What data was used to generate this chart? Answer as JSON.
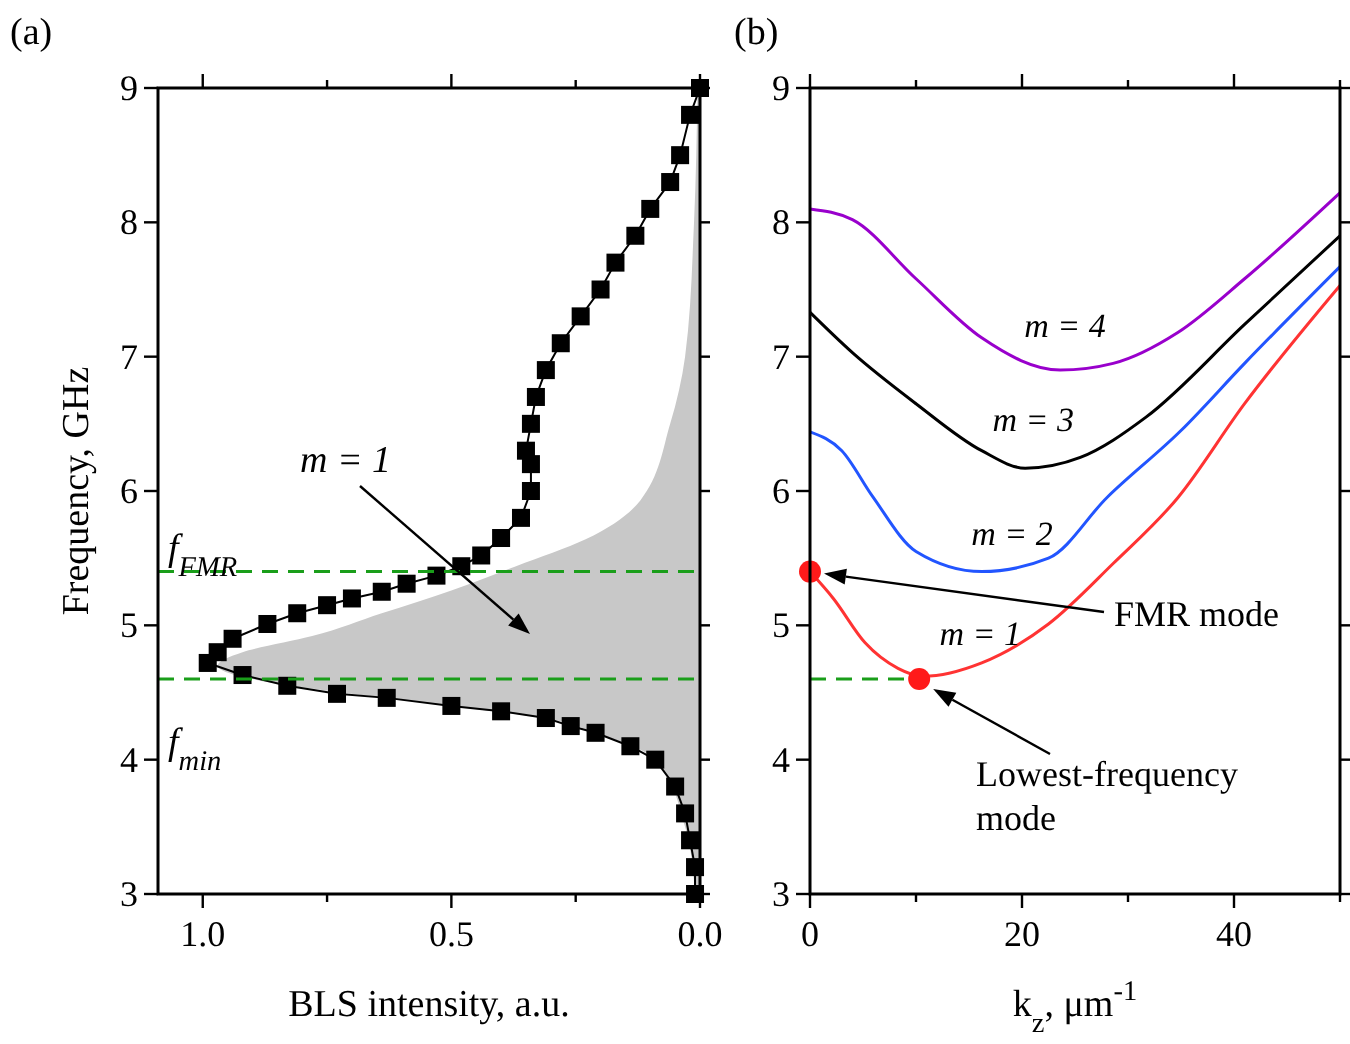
{
  "chart_data": [
    {
      "type": "line",
      "title": "(a)",
      "xlabel": "BLS intensity, a.u.",
      "ylabel": "Frequency, GHz",
      "orientation": "horizontal",
      "legend": false,
      "xlim": [
        1.09,
        0
      ],
      "xticks": [
        {
          "value": 1,
          "label": "1.0"
        },
        {
          "value": 0.75,
          "label": null
        },
        {
          "value": 0.5,
          "label": "0.5"
        },
        {
          "value": 0.25,
          "label": null
        },
        {
          "value": 0,
          "label": "0.0"
        }
      ],
      "ylim": [
        3,
        9
      ],
      "yticks": [
        3,
        4,
        5,
        6,
        7,
        8,
        9
      ],
      "series": [
        {
          "type": "area",
          "color": "#c8c8c8",
          "x": [
            3.0,
            3.5,
            4.0,
            4.2,
            4.3,
            4.4,
            4.5,
            4.6,
            4.7,
            4.8,
            4.92,
            5.09,
            5.26,
            5.44,
            5.64,
            5.93,
            6.5,
            7.0,
            8.0,
            9.0
          ],
          "values": [
            0.01,
            0.03,
            0.09,
            0.21,
            0.3,
            0.5,
            0.72,
            0.9,
            0.97,
            0.92,
            0.78,
            0.64,
            0.5,
            0.37,
            0.23,
            0.12,
            0.06,
            0.03,
            0.012,
            0.005
          ]
        },
        {
          "marker": "square",
          "color": "#000000",
          "x": [
            9.0,
            8.8,
            8.5,
            8.3,
            8.1,
            7.9,
            7.7,
            7.5,
            7.3,
            7.1,
            6.9,
            6.7,
            6.5,
            6.3,
            6.2,
            6.0,
            5.8,
            5.65,
            5.52,
            5.44,
            5.37,
            5.31,
            5.25,
            5.2,
            5.15,
            5.09,
            5.01,
            4.9,
            4.8,
            4.72,
            4.63,
            4.55,
            4.49,
            4.46,
            4.4,
            4.36,
            4.31,
            4.25,
            4.2,
            4.1,
            4.0,
            3.8,
            3.6,
            3.4,
            3.2,
            3.0
          ],
          "values": [
            0.0,
            0.02,
            0.04,
            0.06,
            0.1,
            0.13,
            0.17,
            0.2,
            0.24,
            0.28,
            0.31,
            0.33,
            0.34,
            0.35,
            0.34,
            0.34,
            0.36,
            0.4,
            0.44,
            0.48,
            0.53,
            0.59,
            0.64,
            0.7,
            0.75,
            0.81,
            0.87,
            0.94,
            0.97,
            0.99,
            0.92,
            0.83,
            0.73,
            0.63,
            0.5,
            0.4,
            0.31,
            0.26,
            0.21,
            0.14,
            0.09,
            0.05,
            0.03,
            0.02,
            0.01,
            0.01
          ]
        }
      ],
      "ref_lines": [
        {
          "axis": "y",
          "value": 5.4,
          "color": "#1a9e1a",
          "line_style": "dashed"
        },
        {
          "axis": "y",
          "value": 4.6,
          "color": "#1a9e1a",
          "line_style": "dashed"
        }
      ],
      "annotations": [
        "f$_{FMR}$",
        "f$_{min}$",
        "m = 1"
      ]
    },
    {
      "type": "line",
      "title": "(b)",
      "xlabel": "k$_{z}$, μm$^{-1}$",
      "legend": false,
      "xlim": [
        0,
        50
      ],
      "xticks": [
        0,
        {
          "value": 10,
          "label": null
        },
        20,
        {
          "value": 30,
          "label": null
        },
        40,
        {
          "value": 50,
          "label": null
        }
      ],
      "ylim": [
        3,
        9
      ],
      "yticks": [
        3,
        4,
        5,
        6,
        7,
        8,
        9
      ],
      "series": [
        {
          "name": "m = 1",
          "color": "#ff3333",
          "x": [
            0,
            2.2,
            5.2,
            8.3,
            10.7,
            16.2,
            22.5,
            28.6,
            34.7,
            41,
            50
          ],
          "values": [
            5.4,
            5.2,
            4.87,
            4.68,
            4.62,
            4.72,
            5.01,
            5.46,
            5.95,
            6.65,
            7.53
          ]
        },
        {
          "name": "m = 2",
          "color": "#2255ff",
          "x": [
            0,
            3,
            5.9,
            10,
            16.2,
            22.5,
            28,
            35,
            41,
            50
          ],
          "values": [
            6.44,
            6.3,
            5.96,
            5.55,
            5.4,
            5.5,
            5.95,
            6.45,
            6.95,
            7.67
          ]
        },
        {
          "name": "m = 3",
          "color": "#000000",
          "x": [
            0,
            4,
            10,
            16.2,
            20.3,
            25.5,
            31.7,
            41,
            50
          ],
          "values": [
            7.33,
            7.03,
            6.65,
            6.3,
            6.17,
            6.25,
            6.55,
            7.24,
            7.9
          ]
        },
        {
          "name": "m = 4",
          "color": "#9900cc",
          "x": [
            0,
            4,
            10,
            16.2,
            23.6,
            28.6,
            34.7,
            41,
            50
          ],
          "values": [
            8.1,
            8.02,
            7.58,
            7.14,
            6.9,
            6.95,
            7.18,
            7.58,
            8.22
          ]
        },
        {
          "type": "line",
          "color": "#1a9e1a",
          "line_style": "dashed",
          "x": [
            0,
            10.3
          ],
          "values": [
            4.6,
            4.6
          ]
        },
        {
          "type": "scatter",
          "marker": "circle",
          "color": "#ff1a1a",
          "x": [
            0,
            10.3
          ],
          "values": [
            5.4,
            4.6
          ]
        }
      ],
      "annotations": [
        "FMR mode",
        "Lowest-frequency mode"
      ]
    }
  ]
}
